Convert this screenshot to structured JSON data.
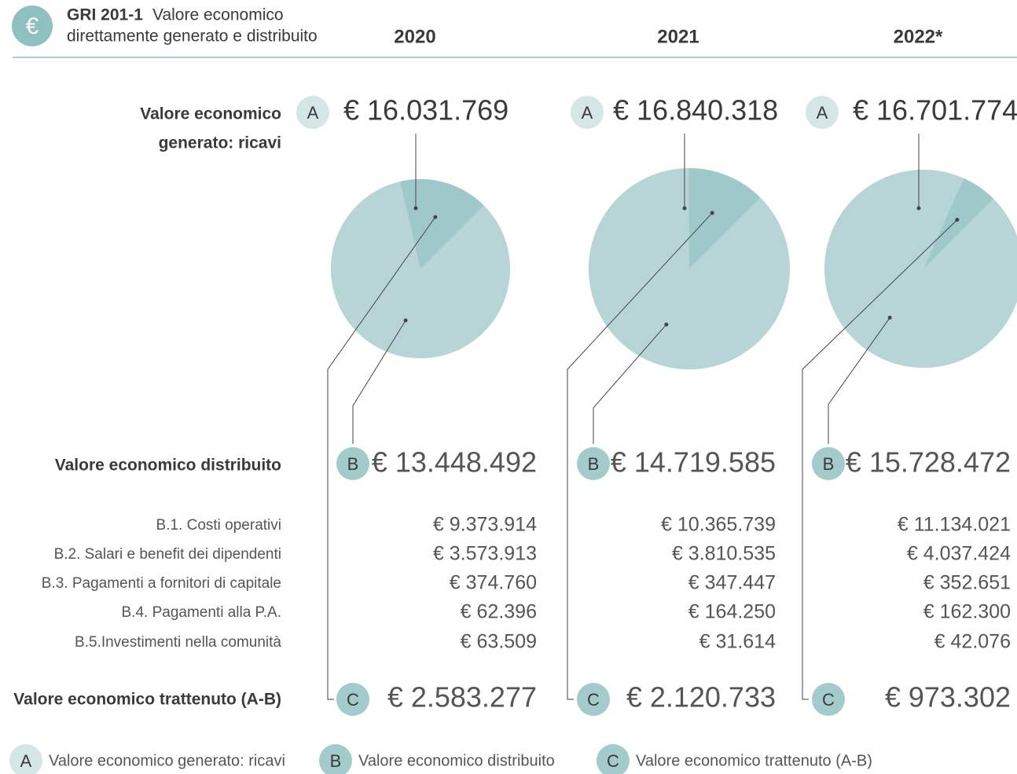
{
  "header": {
    "icon": "€",
    "code": "GRI 201-1",
    "title_lines": [
      "Valore economico",
      "direttamente generato e distribuito"
    ]
  },
  "row_labels": {
    "a_lines": [
      "Valore economico",
      "generato: ricavi"
    ],
    "b": "Valore economico distribuito",
    "items": [
      "B.1. Costi operativi",
      "B.2. Salari e benefit dei dipendenti",
      "B.3. Pagamenti a fornitori di capitale",
      "B.4. Pagamenti alla P.A.",
      "B.5.Investimenti nella comunità"
    ],
    "c": "Valore economico trattenuto (A-B)"
  },
  "legend": [
    {
      "key": "A",
      "label": "Valore economico generato: ricavi"
    },
    {
      "key": "B",
      "label": "Valore economico distribuito"
    },
    {
      "key": "C",
      "label": "Valore economico trattenuto (A-B)"
    }
  ],
  "chart_data": [
    {
      "type": "pie",
      "title": "2020",
      "total_label": "€ 16.031.769",
      "values": [
        13448492,
        2583277
      ],
      "value_labels": [
        "€ 13.448.492",
        "€ 2.583.277"
      ],
      "colors": [
        "#b7d5d7",
        "#9ec8ca"
      ],
      "breakdown": [
        "€ 9.373.914",
        "€ 3.573.913",
        "€ 374.760",
        "€ 62.396",
        "€ 63.509"
      ]
    },
    {
      "type": "pie",
      "title": "2021",
      "total_label": "€ 16.840.318",
      "values": [
        14719585,
        2120733
      ],
      "value_labels": [
        "€ 14.719.585",
        "€ 2.120.733"
      ],
      "colors": [
        "#b7d5d7",
        "#9ec8ca"
      ],
      "breakdown": [
        "€ 10.365.739",
        "€ 3.810.535",
        "€ 347.447",
        "€ 164.250",
        "€ 31.614"
      ]
    },
    {
      "type": "pie",
      "title": "2022*",
      "total_label": "€ 16.701.774",
      "values": [
        15728472,
        973302
      ],
      "value_labels": [
        "€ 15.728.472",
        "€ 973.302"
      ],
      "colors": [
        "#b7d5d7",
        "#9ec8ca"
      ],
      "breakdown": [
        "€ 11.134.021",
        "€ 4.037.424",
        "€ 352.651",
        "€ 162.300",
        "€ 42.076"
      ]
    }
  ]
}
